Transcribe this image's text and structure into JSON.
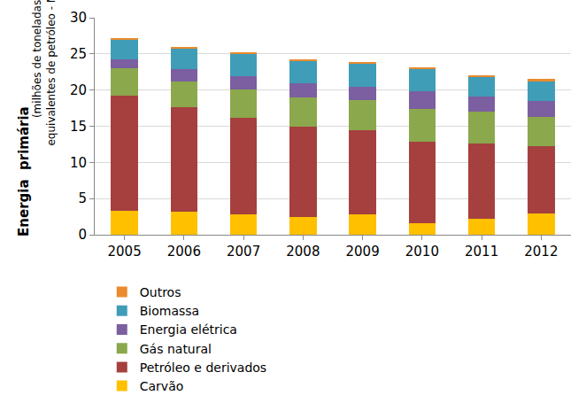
{
  "chart_data": {
    "type": "bar",
    "stacked": true,
    "ylabel": "Energia  primária",
    "ylabel_note": [
      "(milhões de toneladas",
      "equivalentes de petróleo - Mtep)"
    ],
    "categories": [
      "2005",
      "2006",
      "2007",
      "2008",
      "2009",
      "2010",
      "2011",
      "2012"
    ],
    "series": [
      {
        "name": "Carvão",
        "color": "#ffc000",
        "values": [
          3.3,
          3.2,
          2.8,
          2.5,
          2.8,
          1.6,
          2.2,
          2.9
        ]
      },
      {
        "name": "Petróleo e derivados",
        "color": "#a5403f",
        "values": [
          15.9,
          14.4,
          13.4,
          12.4,
          11.6,
          11.3,
          10.4,
          9.4
        ]
      },
      {
        "name": "Gás natural",
        "color": "#8ba84c",
        "values": [
          3.8,
          3.6,
          3.9,
          4.1,
          4.2,
          4.5,
          4.4,
          4.0
        ]
      },
      {
        "name": "Energia elétrica",
        "color": "#7b5fa0",
        "values": [
          1.2,
          1.7,
          1.8,
          2.0,
          1.9,
          2.4,
          2.1,
          2.2
        ]
      },
      {
        "name": "Biomassa",
        "color": "#3f9db8",
        "values": [
          2.8,
          2.9,
          3.1,
          3.0,
          3.2,
          3.1,
          2.8,
          2.8
        ]
      },
      {
        "name": "Outros",
        "color": "#e98b2e",
        "values": [
          0.2,
          0.2,
          0.2,
          0.2,
          0.2,
          0.2,
          0.2,
          0.2
        ]
      }
    ],
    "ylim": [
      0,
      30
    ],
    "yticks": [
      0,
      5,
      10,
      15,
      20,
      25,
      30
    ],
    "grid": true,
    "legend": "bottom"
  }
}
